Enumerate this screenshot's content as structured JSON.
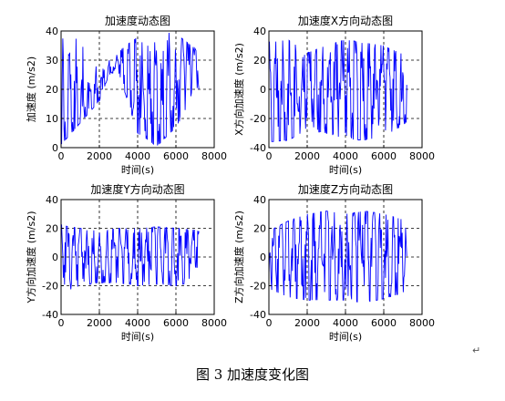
{
  "figure": {
    "caption": "图 3  加速度变化图",
    "paragraph_mark": "↵"
  },
  "colors": {
    "series": "#0000ff",
    "grid": "#000000",
    "axis": "#000000",
    "background": "#ffffff"
  },
  "chart_data": [
    {
      "type": "line",
      "title": "加速度动态图",
      "xlabel": "时间(s)",
      "ylabel": "加速度 (m/s2)",
      "xlim": [
        0,
        8000
      ],
      "ylim": [
        0,
        40
      ],
      "xticks": [
        0,
        2000,
        4000,
        6000,
        8000
      ],
      "yticks": [
        0,
        10,
        20,
        30,
        40
      ],
      "grid": true,
      "series": [
        {
          "x": [
            0,
            2000,
            2500,
            3000,
            4000,
            5000,
            6000,
            7000,
            7200
          ],
          "values": [
            8,
            17,
            25,
            29,
            19,
            11,
            22,
            32,
            25
          ],
          "min_envelope": [
            1,
            16,
            25,
            26,
            5,
            0.5,
            7,
            18,
            20
          ],
          "max_envelope": [
            40,
            36,
            31,
            33,
            38,
            40,
            39,
            34,
            31
          ]
        }
      ]
    },
    {
      "type": "line",
      "title": "加速度X方向动态图",
      "xlabel": "时间(s)",
      "ylabel": "X方向加速度 (m/s2)",
      "xlim": [
        0,
        8000
      ],
      "ylim": [
        -40,
        40
      ],
      "xticks": [
        0,
        2000,
        4000,
        6000,
        8000
      ],
      "yticks": [
        -40,
        -20,
        0,
        20,
        40
      ],
      "grid": true,
      "series": [
        {
          "x": [
            0,
            1000,
            2000,
            3000,
            4000,
            5000,
            6000,
            7000,
            7200
          ],
          "values": [
            5,
            -20,
            10,
            -5,
            15,
            -10,
            5,
            -12,
            -15
          ],
          "min_envelope": [
            -36,
            -35,
            -28,
            -30,
            -34,
            -35,
            -32,
            -25,
            -22
          ],
          "max_envelope": [
            32,
            34,
            25,
            30,
            34,
            32,
            30,
            24,
            22
          ]
        }
      ]
    },
    {
      "type": "line",
      "title": "加速度Y方向动态图",
      "xlabel": "时间(s)",
      "ylabel": "Y方向加速度 (m/s2)",
      "xlim": [
        0,
        8000
      ],
      "ylim": [
        -40,
        40
      ],
      "xticks": [
        0,
        2000,
        4000,
        6000,
        8000
      ],
      "yticks": [
        -40,
        -20,
        0,
        20,
        40
      ],
      "grid": true,
      "series": [
        {
          "x": [
            0,
            1000,
            2000,
            3000,
            4000,
            5000,
            6000,
            7000,
            7200
          ],
          "values": [
            10,
            5,
            -8,
            10,
            -5,
            12,
            -8,
            10,
            5
          ],
          "min_envelope": [
            -25,
            -20,
            -18,
            -18,
            -20,
            -19,
            -20,
            -17,
            -15
          ],
          "max_envelope": [
            22,
            20,
            18,
            20,
            20,
            21,
            20,
            19,
            18
          ]
        }
      ]
    },
    {
      "type": "line",
      "title": "加速度Z方向动态图",
      "xlabel": "时间(s)",
      "ylabel": "Z方向加速度 (m/s2)",
      "xlim": [
        0,
        8000
      ],
      "ylim": [
        -40,
        40
      ],
      "xticks": [
        0,
        2000,
        4000,
        6000,
        8000
      ],
      "yticks": [
        -40,
        -20,
        0,
        20,
        40
      ],
      "grid": true,
      "series": [
        {
          "x": [
            0,
            1000,
            2000,
            3000,
            4000,
            5000,
            6000,
            7000,
            7200
          ],
          "values": [
            0,
            10,
            -10,
            15,
            -15,
            20,
            -10,
            10,
            0
          ],
          "min_envelope": [
            -22,
            -28,
            -30,
            -30,
            -30,
            -32,
            -29,
            -25,
            -20
          ],
          "max_envelope": [
            18,
            25,
            30,
            32,
            30,
            32,
            30,
            26,
            18
          ]
        }
      ]
    }
  ]
}
